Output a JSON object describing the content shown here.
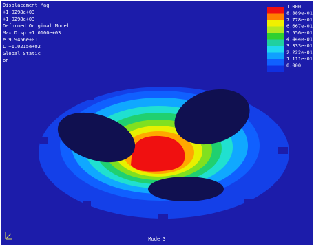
{
  "info_lines": [
    "Displacement Mag",
    "+1.0298e+03",
    "+1.0298e+03",
    "Deformed Original Model",
    "Max Disp +1.0100e+03",
    "e  9.9456e+01",
    "L  +1.0215e+02",
    "Global Static",
    "on"
  ],
  "legend": [
    "1.000",
    "8.889e-01",
    "7.778e-01",
    "6.667e-01",
    "5.556e-01",
    "4.444e-01",
    "3.333e-01",
    "2.222e-01",
    "1.111e-01",
    "0.000"
  ],
  "footer": "Mode 3"
}
